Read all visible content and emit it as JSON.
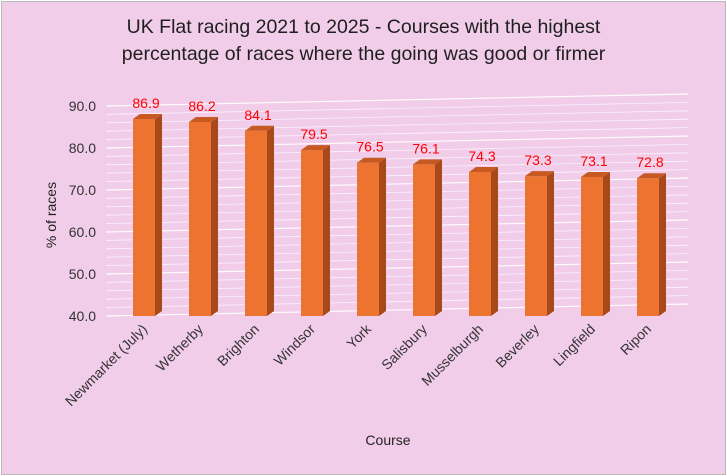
{
  "chart_data": {
    "type": "bar",
    "title_line1": "UK Flat racing 2021 to 2025 - Courses with the highest",
    "title_line2": "percentage of races where the going was good or firmer",
    "xlabel": "Course",
    "ylabel": "% of races",
    "categories": [
      "Newmarket (July)",
      "Wetherby",
      "Brighton",
      "Windsor",
      "York",
      "Salisbury",
      "Musselburgh",
      "Beverley",
      "Lingfield",
      "Ripon"
    ],
    "values": [
      86.9,
      86.2,
      84.1,
      79.5,
      76.5,
      76.1,
      74.3,
      73.3,
      73.1,
      72.8
    ],
    "value_labels": [
      "86.9",
      "86.2",
      "84.1",
      "79.5",
      "76.5",
      "76.1",
      "74.3",
      "73.3",
      "73.1",
      "72.8"
    ],
    "y_ticks": [
      "40.0",
      "50.0",
      "60.0",
      "70.0",
      "80.0",
      "90.0"
    ],
    "ylim": [
      40,
      90
    ],
    "grid": true,
    "legend": "none",
    "colors": {
      "bar_front": "#ed7331",
      "bar_side": "#a8491a",
      "bar_top": "#c65a22",
      "background": "#f1cdea",
      "gridline": "#ffffff",
      "data_label": "#ff0000"
    }
  }
}
